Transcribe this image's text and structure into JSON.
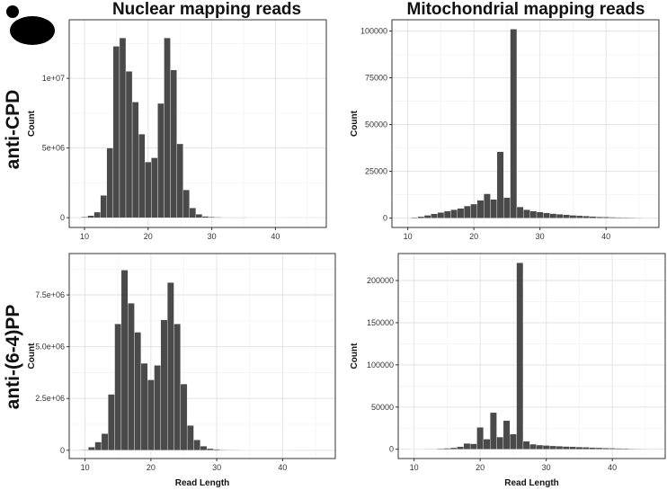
{
  "column_titles": [
    "Nuclear mapping reads",
    "Mitochondrial mapping reads"
  ],
  "row_labels": [
    "anti-CPD",
    "anti-(6-4)PP"
  ],
  "colors": {
    "bar_fill": "#4a4a4a",
    "panel_border": "#333333",
    "grid_major": "#e3e3e3",
    "grid_minor": "#f0f0f0"
  },
  "icons": {
    "logo": "yeast-cell-icon"
  },
  "chart_data": [
    {
      "type": "bar",
      "id": "nuclear-cpd",
      "title": "",
      "xlabel": "",
      "ylabel": "Count",
      "xlim": [
        7.6,
        48
      ],
      "ylim": [
        -700000,
        14200000
      ],
      "x_ticks": [
        10,
        20,
        30,
        40
      ],
      "y_ticks": [
        0,
        5000000,
        10000000
      ],
      "y_tick_labels": [
        "0",
        "5e+06",
        "1e+07"
      ],
      "x": [
        10,
        11,
        12,
        13,
        14,
        15,
        16,
        17,
        18,
        19,
        20,
        21,
        22,
        23,
        24,
        25,
        26,
        27,
        28,
        29,
        30,
        31,
        32,
        33,
        34,
        35,
        36,
        37,
        38,
        39,
        40,
        41,
        42,
        43,
        44,
        45,
        46,
        47
      ],
      "values": [
        50000,
        150000,
        400000,
        1600000,
        5000000,
        12300000,
        12900000,
        10500000,
        8300000,
        6000000,
        4000000,
        4300000,
        8200000,
        12900000,
        10600000,
        5300000,
        2000000,
        700000,
        250000,
        100000,
        60000,
        40000,
        30000,
        25000,
        20000,
        15000,
        12000,
        10000,
        9000,
        8000,
        7000,
        6000,
        5000,
        4000,
        3500,
        3000,
        2500,
        2000
      ]
    },
    {
      "type": "bar",
      "id": "mito-cpd",
      "title": "",
      "xlabel": "",
      "ylabel": "Count",
      "xlim": [
        7.6,
        48
      ],
      "ylim": [
        -5000,
        106000
      ],
      "x_ticks": [
        10,
        20,
        30,
        40
      ],
      "y_ticks": [
        0,
        25000,
        50000,
        75000,
        100000
      ],
      "y_tick_labels": [
        "0",
        "25000",
        "50000",
        "75000",
        "100000"
      ],
      "x": [
        10,
        11,
        12,
        13,
        14,
        15,
        16,
        17,
        18,
        19,
        20,
        21,
        22,
        23,
        24,
        25,
        26,
        27,
        28,
        29,
        30,
        31,
        32,
        33,
        34,
        35,
        36,
        37,
        38,
        39,
        40,
        41,
        42,
        43,
        44,
        45,
        46,
        47
      ],
      "values": [
        200,
        400,
        800,
        1500,
        2300,
        3000,
        3800,
        4500,
        5200,
        6500,
        7500,
        9500,
        13000,
        10000,
        35500,
        11000,
        101000,
        6000,
        4500,
        3800,
        3300,
        2800,
        2400,
        2100,
        1800,
        1500,
        1300,
        1100,
        900,
        700,
        600,
        500,
        400,
        350,
        300,
        250,
        200,
        150
      ]
    },
    {
      "type": "bar",
      "id": "nuclear-64pp",
      "title": "",
      "xlabel": "Read Length",
      "ylabel": "Count",
      "xlim": [
        7.6,
        48
      ],
      "ylim": [
        -400000,
        9500000
      ],
      "x_ticks": [
        10,
        20,
        30,
        40
      ],
      "y_ticks": [
        0,
        2500000,
        5000000,
        7500000
      ],
      "y_tick_labels": [
        "0",
        "2.5e+06",
        "5.0e+06",
        "7.5e+06"
      ],
      "x": [
        10,
        11,
        12,
        13,
        14,
        15,
        16,
        17,
        18,
        19,
        20,
        21,
        22,
        23,
        24,
        25,
        26,
        27,
        28,
        29,
        30,
        31,
        32,
        33,
        34,
        35,
        36,
        37,
        38,
        39,
        40,
        41,
        42,
        43,
        44,
        45,
        46,
        47
      ],
      "values": [
        30000,
        150000,
        400000,
        800000,
        2700000,
        6100000,
        8700000,
        7100000,
        5700000,
        4200000,
        3400000,
        4100000,
        6300000,
        8100000,
        6100000,
        3200000,
        1200000,
        500000,
        200000,
        80000,
        50000,
        30000,
        25000,
        20000,
        15000,
        12000,
        10000,
        8000,
        7000,
        6000,
        5000,
        4000,
        3500,
        3000,
        2500,
        2000,
        1500,
        1000
      ]
    },
    {
      "type": "bar",
      "id": "mito-64pp",
      "title": "",
      "xlabel": "Read Length",
      "ylabel": "Count",
      "xlim": [
        7.6,
        48
      ],
      "ylim": [
        -11000,
        232000
      ],
      "x_ticks": [
        10,
        20,
        30,
        40
      ],
      "y_ticks": [
        0,
        50000,
        100000,
        150000,
        200000
      ],
      "y_tick_labels": [
        "0",
        "50000",
        "100000",
        "150000",
        "200000"
      ],
      "x": [
        10,
        11,
        12,
        13,
        14,
        15,
        16,
        17,
        18,
        19,
        20,
        21,
        22,
        23,
        24,
        25,
        26,
        27,
        28,
        29,
        30,
        31,
        32,
        33,
        34,
        35,
        36,
        37,
        38,
        39,
        40,
        41,
        42,
        43,
        44,
        45,
        46,
        47
      ],
      "values": [
        100,
        200,
        300,
        500,
        800,
        1200,
        1800,
        3000,
        7000,
        6500,
        26000,
        12000,
        43500,
        14500,
        34000,
        18000,
        221000,
        9500,
        6000,
        5000,
        4500,
        4000,
        3700,
        3300,
        3000,
        2700,
        2400,
        2100,
        1800,
        1500,
        1300,
        1100,
        900,
        700,
        600,
        500,
        400,
        300
      ]
    }
  ]
}
